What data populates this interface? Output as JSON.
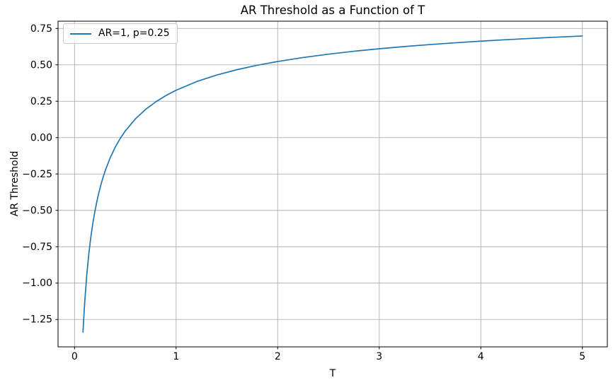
{
  "chart_data": {
    "type": "line",
    "title": "AR Threshold as a Function of T",
    "xlabel": "T",
    "ylabel": "AR Threshold",
    "grid": true,
    "legend_position": "upper left",
    "xlim": [
      -0.1625,
      5.2458
    ],
    "ylim": [
      -1.4382,
      0.8
    ],
    "x_tick_values": [
      0,
      1,
      2,
      3,
      4,
      5
    ],
    "x_tick_labels": [
      "0",
      "1",
      "2",
      "3",
      "4",
      "5"
    ],
    "y_tick_values": [
      0.75,
      0.5,
      0.25,
      0.0,
      -0.25,
      -0.5,
      -0.75,
      -1.0,
      -1.25
    ],
    "y_tick_labels": [
      "0.75",
      "0.50",
      "0.25",
      "0.00",
      "−0.25",
      "−0.50",
      "−0.75",
      "−1.00",
      "−1.25"
    ],
    "series": [
      {
        "name": "AR=1, p=0.25",
        "color": "#1f77b4",
        "x": [
          0.0833,
          0.09,
          0.1,
          0.12,
          0.14,
          0.16,
          0.18,
          0.2,
          0.225,
          0.25,
          0.275,
          0.3,
          0.35,
          0.4,
          0.45,
          0.5,
          0.6,
          0.7,
          0.8,
          0.9,
          1.0,
          1.2,
          1.4,
          1.6,
          1.8,
          2.0,
          2.25,
          2.5,
          2.75,
          3.0,
          3.25,
          3.5,
          3.75,
          4.0,
          4.25,
          4.5,
          4.75,
          5.0
        ],
        "y": [
          -1.3365,
          -1.2483,
          -1.133,
          -0.9471,
          -0.8027,
          -0.6863,
          -0.5899,
          -0.5083,
          -0.422,
          -0.349,
          -0.2862,
          -0.2315,
          -0.1401,
          -0.0665,
          -0.0055,
          0.0461,
          0.1292,
          0.1938,
          0.2459,
          0.289,
          0.3255,
          0.3843,
          0.4299,
          0.4668,
          0.4973,
          0.5231,
          0.5503,
          0.5734,
          0.5933,
          0.6106,
          0.6259,
          0.6395,
          0.6517,
          0.6628,
          0.6728,
          0.682,
          0.6905,
          0.6983
        ]
      }
    ]
  },
  "colors": {
    "line": "#1f77b4",
    "grid": "#b0b0b0",
    "spine": "#000000",
    "background": "#ffffff"
  }
}
